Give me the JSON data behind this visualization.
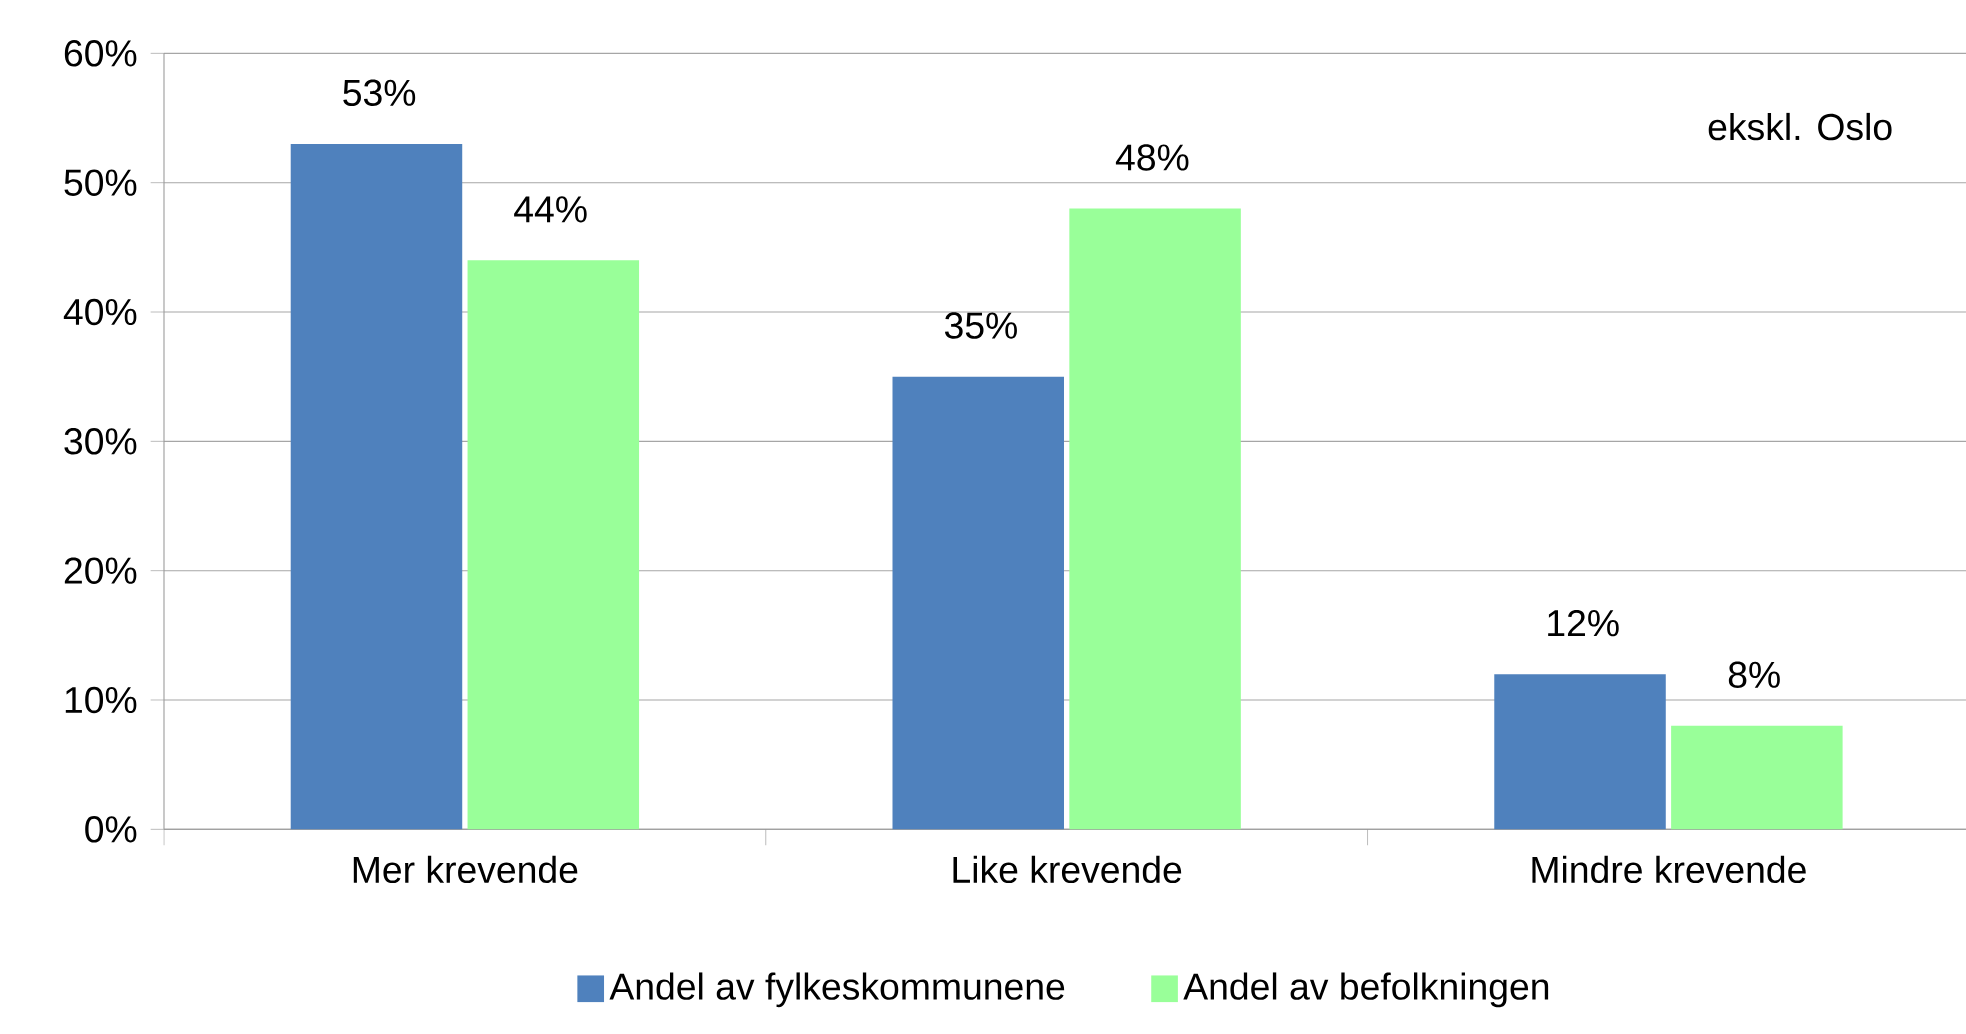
{
  "chart_data": {
    "type": "bar",
    "categories": [
      "Mer krevende",
      "Like krevende",
      "Mindre krevende"
    ],
    "series": [
      {
        "name": "Andel av fylkeskommunene",
        "color": "#4f81bd",
        "values": [
          53,
          35,
          12
        ],
        "value_labels": [
          "53%",
          "35%",
          "12%"
        ]
      },
      {
        "name": "Andel av befolkningen",
        "color": "#99ff99",
        "values": [
          44,
          48,
          8
        ],
        "value_labels": [
          "44%",
          "48%",
          "8%"
        ]
      }
    ],
    "ylim": [
      0,
      60
    ],
    "yticks": [
      {
        "value": 0,
        "label": "0%"
      },
      {
        "value": 10,
        "label": "10%"
      },
      {
        "value": 20,
        "label": "20%"
      },
      {
        "value": 30,
        "label": "30%"
      },
      {
        "value": 40,
        "label": "40%"
      },
      {
        "value": 50,
        "label": "50%"
      },
      {
        "value": 60,
        "label": "60%"
      }
    ],
    "grid": "y",
    "legend": "bottom",
    "annotations": [
      "ekskl. Oslo"
    ]
  }
}
